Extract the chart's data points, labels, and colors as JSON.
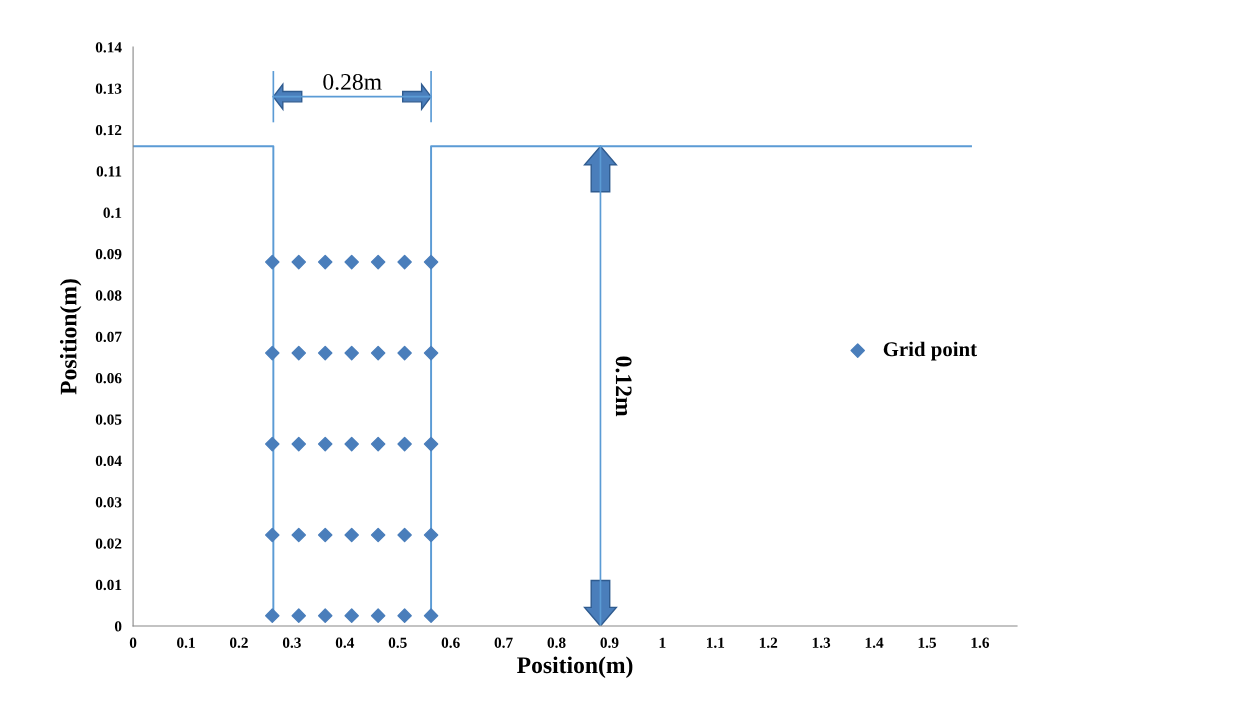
{
  "chart_data": {
    "type": "scatter",
    "xlabel": "Position(m)",
    "ylabel": "Position(m)",
    "xlim": [
      0,
      1.67
    ],
    "xticks": [
      0,
      0.1,
      0.2,
      0.3,
      0.4,
      0.5,
      0.6,
      0.7,
      0.8,
      0.9,
      1,
      1.1,
      1.2,
      1.3,
      1.4,
      1.5,
      1.6
    ],
    "ylim": [
      0,
      0.14
    ],
    "yticks": [
      0,
      0.01,
      0.02,
      0.03,
      0.04,
      0.05,
      0.06,
      0.07,
      0.08,
      0.09,
      0.1,
      0.11,
      0.12,
      0.13,
      0.14
    ],
    "grid": false,
    "legend": "right",
    "marker": "diamond",
    "series": [
      {
        "type": "line",
        "marker": "none",
        "color": "#5b9bd5",
        "x": [
          0,
          0.265,
          0.265
        ],
        "values": [
          0.116,
          0.116,
          0.0025
        ]
      },
      {
        "type": "line",
        "marker": "none",
        "color": "#5b9bd5",
        "x": [
          0.563,
          0.563,
          1.583
        ],
        "values": [
          0.0025,
          0.116,
          0.116
        ]
      },
      {
        "name": "Grid point",
        "color": "#4a7ebb",
        "x": [
          0.263,
          0.313,
          0.363,
          0.413,
          0.463,
          0.513,
          0.563,
          0.263,
          0.313,
          0.363,
          0.413,
          0.463,
          0.513,
          0.563,
          0.263,
          0.313,
          0.363,
          0.413,
          0.463,
          0.513,
          0.563,
          0.263,
          0.313,
          0.363,
          0.413,
          0.463,
          0.513,
          0.563,
          0.263,
          0.313,
          0.363,
          0.413,
          0.463,
          0.513,
          0.563
        ],
        "values": [
          0.0025,
          0.0025,
          0.0025,
          0.0025,
          0.0025,
          0.0025,
          0.0025,
          0.022,
          0.022,
          0.022,
          0.022,
          0.022,
          0.022,
          0.022,
          0.044,
          0.044,
          0.044,
          0.044,
          0.044,
          0.044,
          0.044,
          0.066,
          0.066,
          0.066,
          0.066,
          0.066,
          0.066,
          0.066,
          0.088,
          0.088,
          0.088,
          0.088,
          0.088,
          0.088,
          0.088
        ]
      }
    ],
    "ref_lines": [
      {
        "axis": "x",
        "value": 0.883,
        "label": "0.12m",
        "color": "#5b9bd5"
      }
    ],
    "annotations": [
      "0.28m"
    ]
  }
}
